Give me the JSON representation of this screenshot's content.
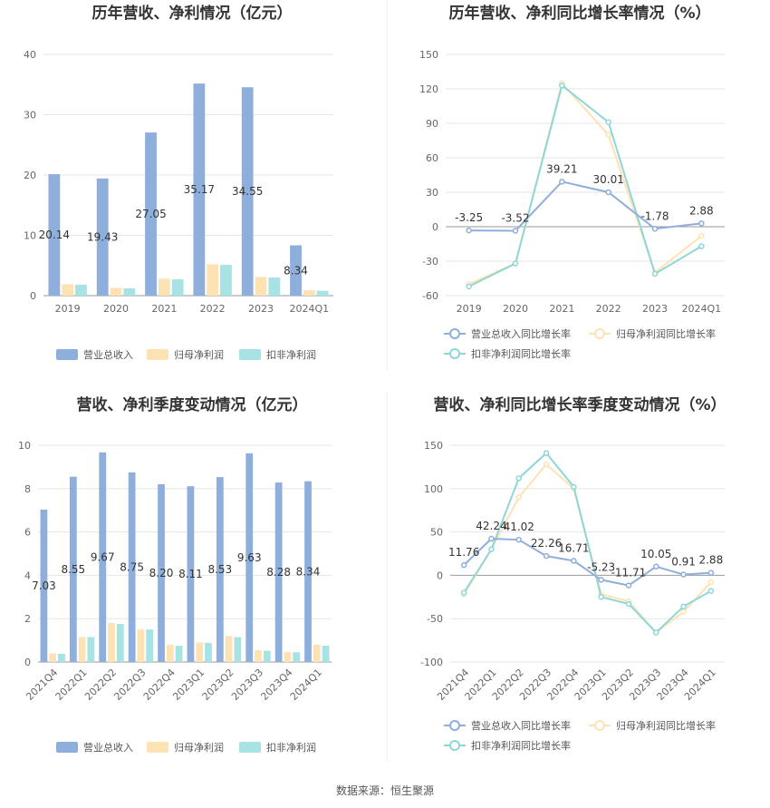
{
  "source": "数据来源：恒生聚源",
  "colors": {
    "revenue": "#8eaedb",
    "parent": "#fde3b4",
    "deducted": "#a7e2e4",
    "revLine": "#8eaedb",
    "parLine": "#fde3b4",
    "dedLine": "#8fd6d8"
  },
  "chart_data": [
    {
      "type": "bar",
      "title": "历年营收、净利情况（亿元）",
      "categories": [
        "2019",
        "2020",
        "2021",
        "2022",
        "2023",
        "2024Q1"
      ],
      "ylim": [
        0,
        40
      ],
      "yticks": [
        0,
        10,
        20,
        30,
        40
      ],
      "series": [
        {
          "name": "营业总收入",
          "values": [
            20.14,
            19.43,
            27.05,
            35.17,
            34.55,
            8.34
          ],
          "labels": [
            "20.14",
            "19.43",
            "27.05",
            "35.17",
            "34.55",
            "8.34"
          ]
        },
        {
          "name": "归母净利润",
          "values": [
            1.9,
            1.3,
            2.8,
            5.2,
            3.1,
            0.9
          ]
        },
        {
          "name": "扣非净利润",
          "values": [
            1.8,
            1.2,
            2.7,
            5.1,
            3.0,
            0.8
          ]
        }
      ]
    },
    {
      "type": "line",
      "title": "历年营收、净利同比增长率情况（%）",
      "categories": [
        "2019",
        "2020",
        "2021",
        "2022",
        "2023",
        "2024Q1"
      ],
      "ylim": [
        -60,
        150
      ],
      "yticks": [
        -60,
        -30,
        0,
        30,
        60,
        90,
        120,
        150
      ],
      "series": [
        {
          "name": "营业总收入同比增长率",
          "values": [
            -3.25,
            -3.52,
            39.21,
            30.01,
            -1.78,
            2.88
          ],
          "labels": [
            "-3.25",
            "-3.52",
            "39.21",
            "30.01",
            "-1.78",
            "2.88"
          ]
        },
        {
          "name": "归母净利润同比增长率",
          "values": [
            -50,
            -32,
            125,
            80,
            -40,
            -8
          ]
        },
        {
          "name": "扣非净利润同比增长率",
          "values": [
            -52,
            -32,
            123,
            91,
            -41,
            -17
          ]
        }
      ]
    },
    {
      "type": "bar",
      "title": "营收、净利季度变动情况（亿元）",
      "categories": [
        "2021Q4",
        "2022Q1",
        "2022Q2",
        "2022Q3",
        "2022Q4",
        "2023Q1",
        "2023Q2",
        "2023Q3",
        "2023Q4",
        "2024Q1"
      ],
      "ylim": [
        0,
        10
      ],
      "yticks": [
        0,
        2,
        4,
        6,
        8,
        10
      ],
      "series": [
        {
          "name": "营业总收入",
          "values": [
            7.03,
            8.55,
            9.67,
            8.75,
            8.2,
            8.11,
            8.53,
            9.63,
            8.28,
            8.34
          ],
          "labels": [
            "7.03",
            "8.55",
            "9.67",
            "8.75",
            "8.20",
            "8.11",
            "8.53",
            "9.63",
            "8.28",
            "8.34"
          ]
        },
        {
          "name": "归母净利润",
          "values": [
            0.4,
            1.15,
            1.8,
            1.5,
            0.8,
            0.9,
            1.2,
            0.55,
            0.45,
            0.8
          ]
        },
        {
          "name": "扣非净利润",
          "values": [
            0.38,
            1.15,
            1.75,
            1.5,
            0.75,
            0.88,
            1.15,
            0.52,
            0.45,
            0.75
          ]
        }
      ]
    },
    {
      "type": "line",
      "title": "营收、净利同比增长率季度变动情况（%）",
      "categories": [
        "2021Q4",
        "2022Q1",
        "2022Q2",
        "2022Q3",
        "2022Q4",
        "2023Q1",
        "2023Q2",
        "2023Q3",
        "2023Q4",
        "2024Q1"
      ],
      "ylim": [
        -100,
        150
      ],
      "yticks": [
        -100,
        -50,
        0,
        50,
        100,
        150
      ],
      "series": [
        {
          "name": "营业总收入同比增长率",
          "values": [
            11.76,
            42.24,
            41.02,
            22.26,
            16.71,
            -5.23,
            -11.71,
            10.05,
            0.91,
            2.88
          ],
          "labels": [
            "11.76",
            "42.24",
            "41.02",
            "22.26",
            "16.71",
            "-5.23",
            "-11.71",
            "10.05",
            "0.91",
            "2.88"
          ]
        },
        {
          "name": "归母净利润同比增长率",
          "values": [
            -22,
            30,
            90,
            128,
            100,
            -22,
            -30,
            -66,
            -42,
            -8
          ]
        },
        {
          "name": "扣非净利润同比增长率",
          "values": [
            -20,
            30,
            112,
            141,
            102,
            -25,
            -33,
            -66,
            -36,
            -18
          ]
        }
      ]
    }
  ]
}
